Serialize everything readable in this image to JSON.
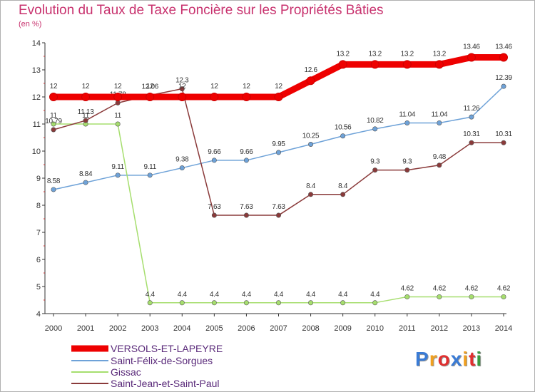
{
  "title": "Evolution du Taux de Taxe Foncière sur les Propriétés Bâties",
  "unit": "(en %)",
  "logo": {
    "text": "Proxiti",
    "letters": [
      "P",
      "r",
      "o",
      "x",
      "i",
      "t",
      "i"
    ],
    "colors": [
      "#3a7bd5",
      "#f0a020",
      "#e03030",
      "#3a7bd5",
      "#f0a020",
      "#e03030",
      "#3a9a40"
    ]
  },
  "chart_data": {
    "type": "line",
    "title": "Evolution du Taux de Taxe Foncière sur les Propriétés Bâties",
    "ylabel": "(en %)",
    "xlabel": "",
    "x": [
      2000,
      2001,
      2002,
      2003,
      2004,
      2005,
      2006,
      2007,
      2008,
      2009,
      2010,
      2011,
      2012,
      2013,
      2014
    ],
    "ylim": [
      4,
      14
    ],
    "yticks": [
      4,
      5,
      6,
      7,
      8,
      9,
      10,
      11,
      12,
      13,
      14
    ],
    "grid": false,
    "legend": "bottom-left",
    "series": [
      {
        "name": "VERSOLS-ET-LAPEYRE",
        "color": "#ee0000",
        "emphasis": true,
        "values": [
          12,
          12,
          12,
          12,
          12,
          12,
          12,
          12,
          12.6,
          13.2,
          13.2,
          13.2,
          13.2,
          13.46,
          13.46
        ],
        "labels": [
          "12",
          "12",
          "12",
          "12",
          "12",
          "12",
          "12",
          "12",
          "12.6",
          "13.2",
          "13.2",
          "13.2",
          "13.2",
          "13.46",
          "13.46"
        ]
      },
      {
        "name": "Saint-Félix-de-Sorgues",
        "color": "#6ea2d8",
        "values": [
          8.58,
          8.84,
          9.11,
          9.11,
          9.38,
          9.66,
          9.66,
          9.95,
          10.25,
          10.56,
          10.82,
          11.04,
          11.04,
          11.26,
          12.39
        ],
        "labels": [
          "8.58",
          "8.84",
          "9.11",
          "9.11",
          "9.38",
          "9.66",
          "9.66",
          "9.95",
          "10.25",
          "10.56",
          "10.82",
          "11.04",
          "11.04",
          "11.26",
          "12.39"
        ]
      },
      {
        "name": "Gissac",
        "color": "#a6de6e",
        "values": [
          11,
          11,
          11,
          4.4,
          4.4,
          4.4,
          4.4,
          4.4,
          4.4,
          4.4,
          4.4,
          4.62,
          4.62,
          4.62,
          4.62
        ],
        "labels": [
          "11",
          "11",
          "11",
          "4.4",
          "4.4",
          "4.4",
          "4.4",
          "4.4",
          "4.4",
          "4.4",
          "4.4",
          "4.62",
          "4.62",
          "4.62",
          "4.62"
        ]
      },
      {
        "name": "Saint-Jean-et-Saint-Paul",
        "color": "#8a3a3a",
        "values": [
          10.79,
          11.13,
          11.78,
          12.06,
          12.3,
          7.63,
          7.63,
          7.63,
          8.4,
          8.4,
          9.3,
          9.3,
          9.48,
          10.31,
          10.31
        ],
        "labels": [
          "10.79",
          "11.13",
          "11.78",
          "12.06",
          "12.3",
          "7.63",
          "7.63",
          "7.63",
          "8.4",
          "8.4",
          "9.3",
          "9.3",
          "9.48",
          "10.31",
          "10.31"
        ]
      }
    ]
  }
}
